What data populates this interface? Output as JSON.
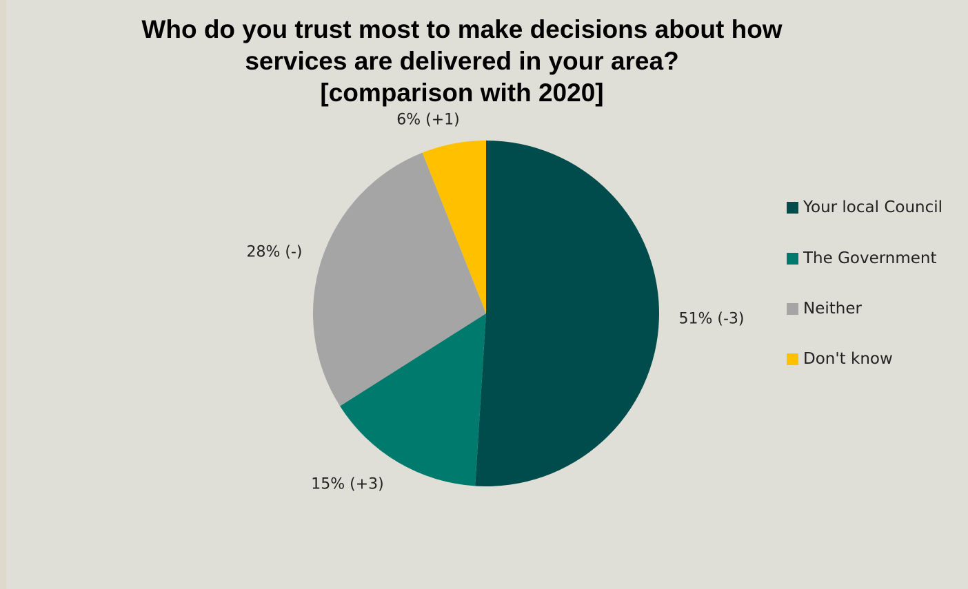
{
  "chart_data": {
    "type": "pie",
    "title_lines": [
      "Who do you trust most to make decisions about how",
      "services are delivered in your area?",
      "[comparison with 2020]"
    ],
    "categories": [
      "Your local Council",
      "The Government",
      "Neither",
      "Don't know"
    ],
    "values": [
      51,
      15,
      28,
      6
    ],
    "data_labels": [
      "51% (-3)",
      "15% (+3)",
      "28% (-)",
      "6% (+1)"
    ],
    "colors": [
      "#004c4c",
      "#007a6d",
      "#a5a5a5",
      "#ffc000"
    ],
    "legend_position": "right",
    "start_angle": "top, clockwise"
  }
}
